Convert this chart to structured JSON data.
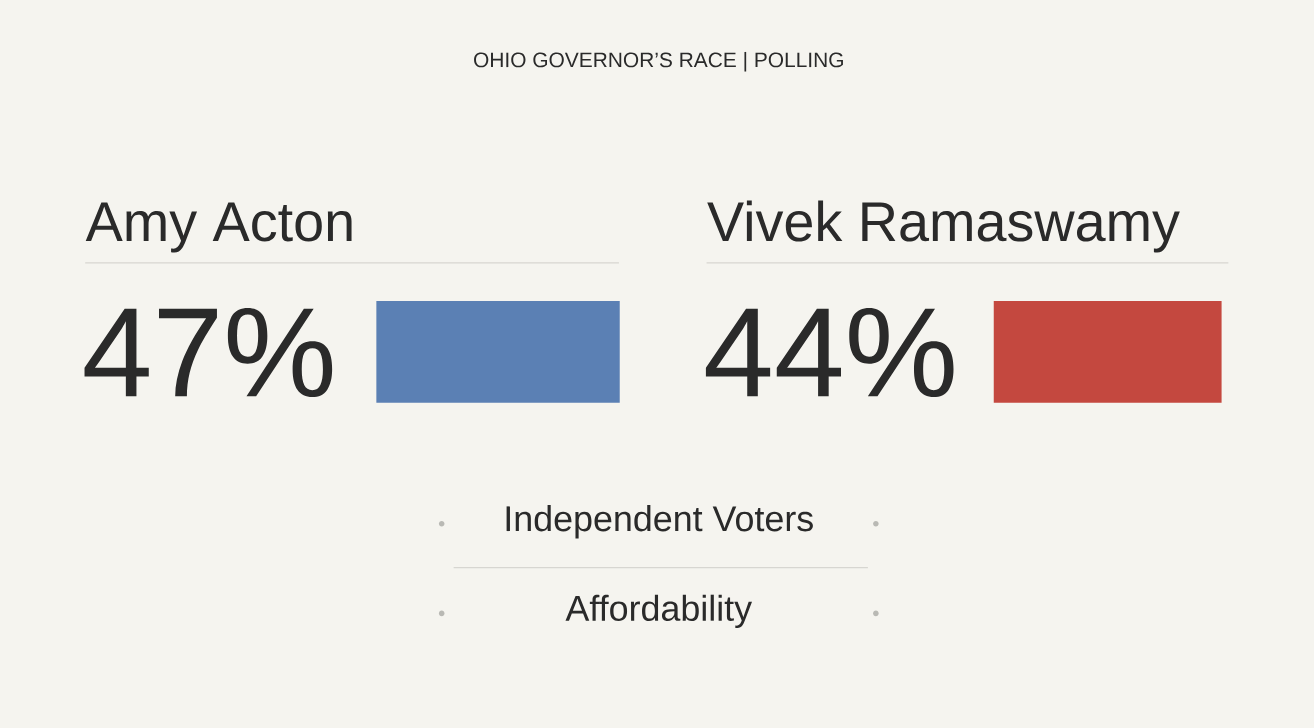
{
  "chart_data": {
    "type": "other",
    "title": "OHIO GOVERNOR’S RACE | POLLING",
    "categories": [
      "Amy Acton",
      "Vivek Ramaswamy"
    ],
    "values": [
      47,
      44
    ],
    "value_labels": [
      "47%",
      "44%"
    ],
    "colors": [
      "#5b80b4",
      "#c4483f"
    ],
    "annotations": [
      "Independent Voters",
      "Affordability"
    ]
  }
}
